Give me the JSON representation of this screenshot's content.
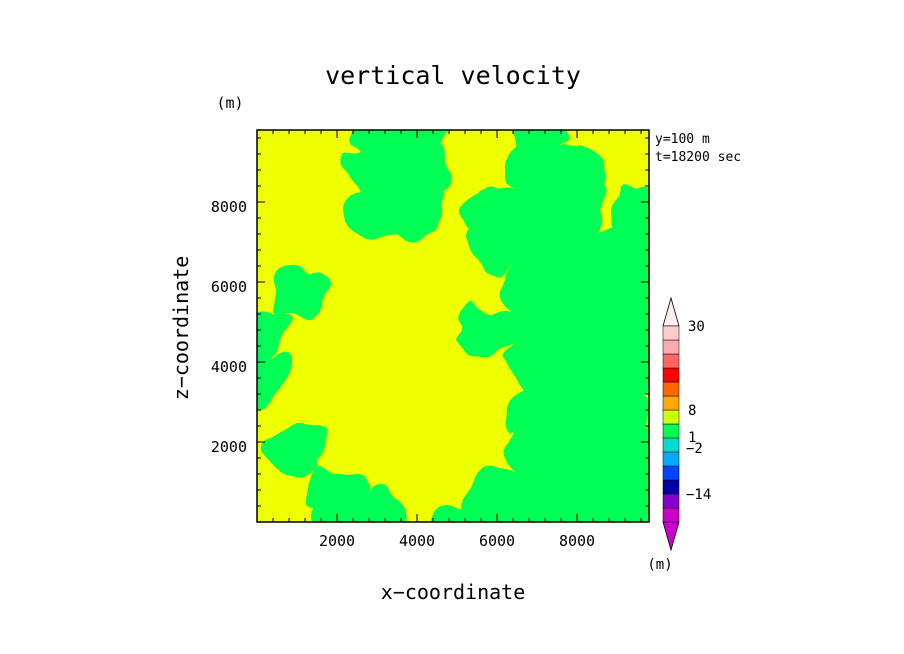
{
  "chart_data": {
    "type": "heatmap",
    "title": "vertical velocity",
    "xlabel": "x−coordinate",
    "ylabel": "z−coordinate",
    "y_unit": "(m)",
    "colorbar_unit": "(m)",
    "xlim": [
      0,
      9800
    ],
    "ylim": [
      0,
      9800
    ],
    "x_ticks": [
      2000,
      4000,
      6000,
      8000
    ],
    "y_ticks": [
      2000,
      4000,
      6000,
      8000
    ],
    "annotations": [
      "y=100 m",
      "t=18200 sec"
    ],
    "colorbar": {
      "labels": [
        {
          "text": "30",
          "value": 30
        },
        {
          "text": "8",
          "value": 8
        },
        {
          "text": "1",
          "value": 1
        },
        {
          "text": "−2",
          "value": -2
        },
        {
          "text": "−14",
          "value": -14
        }
      ],
      "levels": [
        -14,
        -8,
        -4,
        -2,
        -1,
        -0.5,
        0,
        0.5,
        1,
        2,
        4,
        8,
        16,
        30
      ],
      "colors": [
        "#cc00cc",
        "#8800cc",
        "#0000aa",
        "#0044ff",
        "#00aaff",
        "#00ddcc",
        "#00ff55",
        "#ccff00",
        "#ffaa00",
        "#ff6600",
        "#ff0000",
        "#ff6666",
        "#ffaaaa",
        "#ffcccc"
      ],
      "extend": "both"
    },
    "regions": [
      {
        "value": 0.3,
        "color": "#eeff00",
        "label": "0 to 0.5"
      },
      {
        "value": -0.3,
        "color": "#00ff55",
        "label": "-0.5 to 0"
      }
    ],
    "field_grid": {
      "x": [
        0,
        1000,
        2000,
        3000,
        4000,
        5000,
        6000,
        7000,
        8000,
        9000,
        9800
      ],
      "z": [
        9800,
        8800,
        7800,
        6800,
        5800,
        4800,
        3800,
        2800,
        1800,
        800,
        0
      ],
      "values": [
        [
          1,
          1,
          1,
          -1,
          -1,
          1,
          1,
          -1,
          1,
          1,
          1
        ],
        [
          1,
          1,
          1,
          -1,
          -1,
          1,
          1,
          -1,
          -1,
          1,
          1
        ],
        [
          1,
          1,
          1,
          -1,
          -1,
          1,
          -1,
          -1,
          -1,
          1,
          -1
        ],
        [
          1,
          1,
          1,
          1,
          1,
          1,
          -1,
          -1,
          -1,
          -1,
          -1
        ],
        [
          1,
          -1,
          1,
          1,
          1,
          1,
          1,
          -1,
          -1,
          -1,
          -1
        ],
        [
          -1,
          1,
          1,
          1,
          1,
          1,
          -1,
          -1,
          -1,
          -1,
          -1
        ],
        [
          -1,
          1,
          1,
          1,
          1,
          1,
          1,
          -1,
          -1,
          -1,
          -1
        ],
        [
          1,
          1,
          1,
          1,
          1,
          1,
          1,
          -1,
          -1,
          -1,
          1
        ],
        [
          1,
          -1,
          1,
          1,
          1,
          1,
          1,
          -1,
          -1,
          -1,
          -1
        ],
        [
          1,
          1,
          -1,
          1,
          1,
          1,
          -1,
          -1,
          -1,
          -1,
          -1
        ],
        [
          1,
          1,
          -1,
          -1,
          1,
          -1,
          -1,
          -1,
          -1,
          -1,
          -1
        ]
      ]
    }
  }
}
